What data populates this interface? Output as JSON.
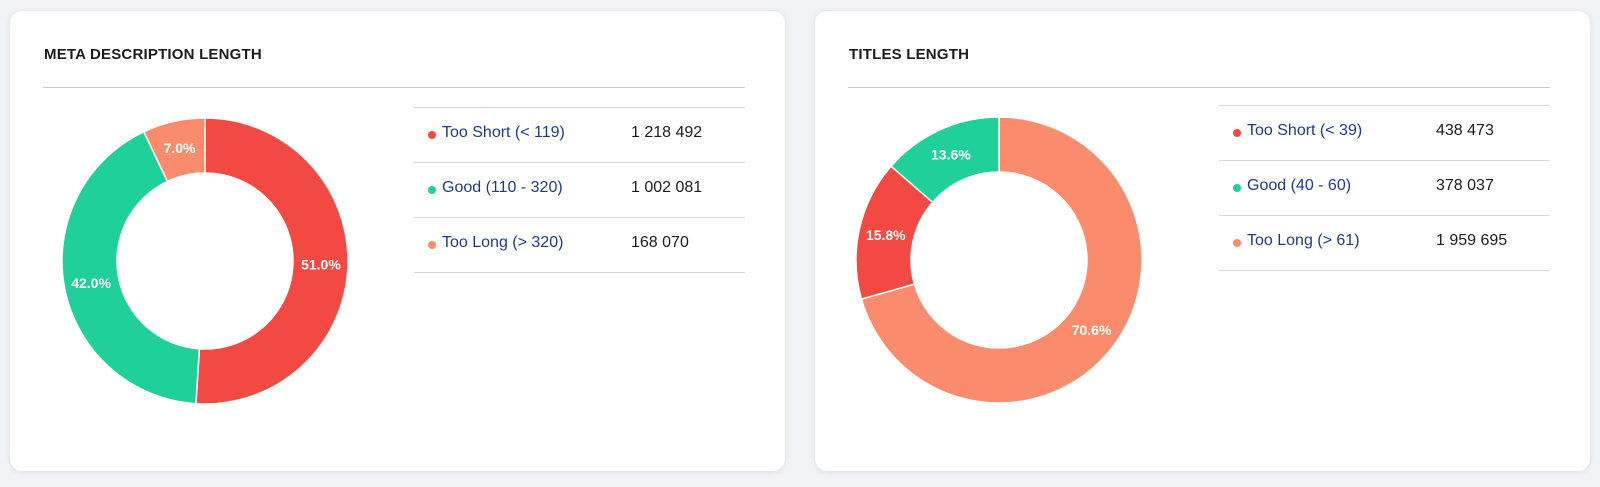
{
  "colors": {
    "too_short": "#f24a43",
    "good": "#20d09a",
    "too_long": "#fa8c6d"
  },
  "chart_data": [
    {
      "type": "pie",
      "title": "META DESCRIPTION LENGTH",
      "categories": [
        "Too Short (< 119)",
        "Good (110 - 320)",
        "Too Long (> 320)"
      ],
      "values": [
        1218492,
        1002081,
        168070
      ],
      "display_values": [
        "1 218 492",
        "1 002 081",
        "168 070"
      ],
      "percent_labels": [
        "51.0%",
        "42.0%",
        "7.0%"
      ],
      "legend_position": "right"
    },
    {
      "type": "pie",
      "title": "TITLES LENGTH",
      "categories": [
        "Too Short (< 39)",
        "Good (40 - 60)",
        "Too Long (> 61)"
      ],
      "values": [
        438473,
        378037,
        1959695
      ],
      "display_values": [
        "438 473",
        "378 037",
        "1 959 695"
      ],
      "percent_labels": [
        "15.8%",
        "13.6%",
        "70.6%"
      ],
      "legend_position": "right"
    }
  ]
}
